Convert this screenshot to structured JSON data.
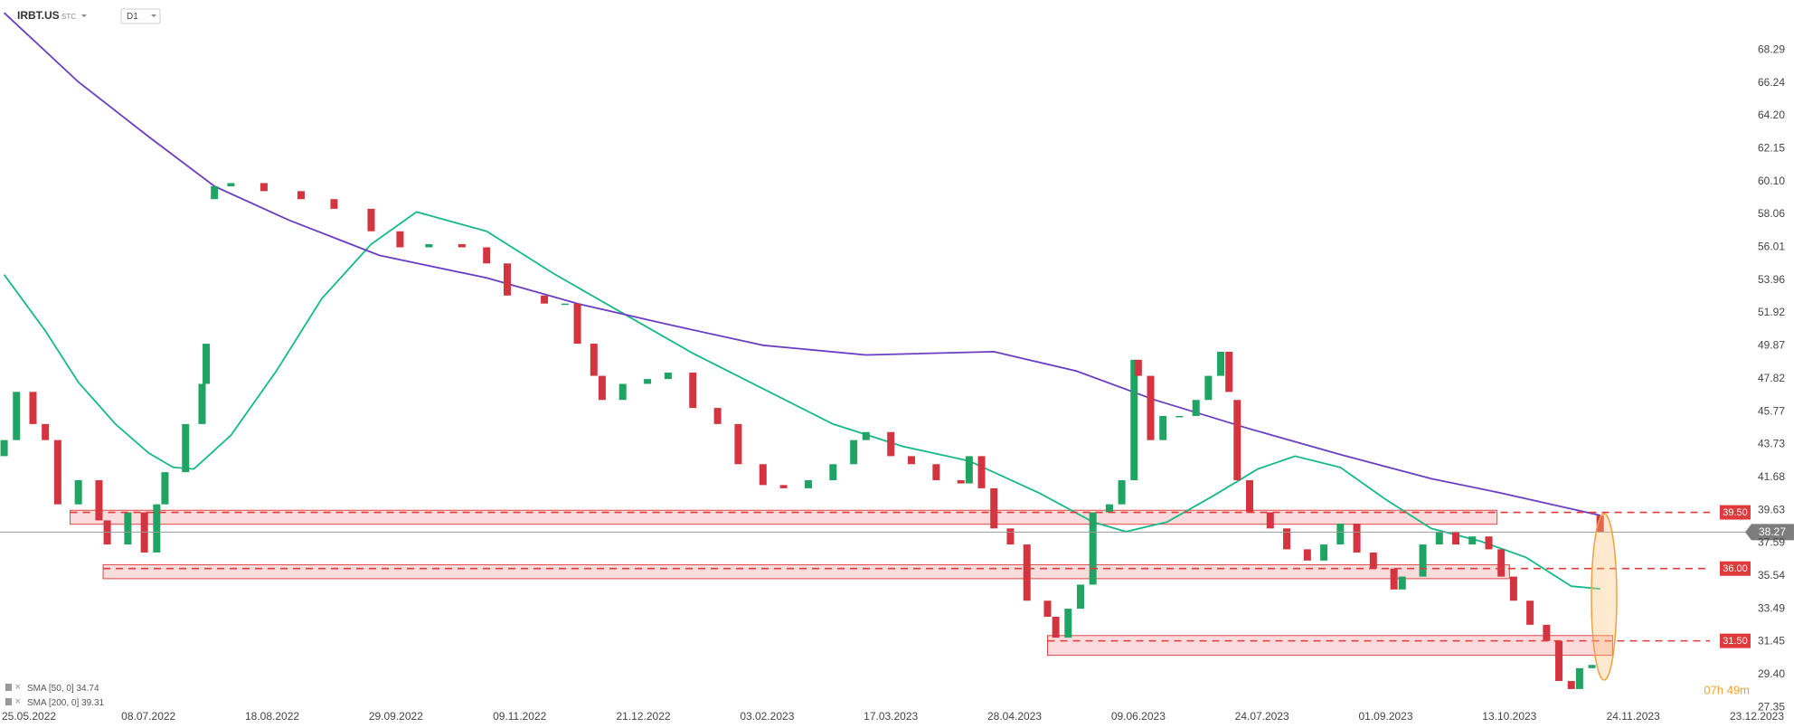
{
  "chart_data": {
    "type": "candlestick",
    "symbol": "IRBT.US",
    "exchange": "STC",
    "interval": "D1",
    "up_color": "#1fa463",
    "down_color": "#d3343f",
    "x": [
      -5,
      -2,
      2,
      5,
      8,
      13,
      18,
      20,
      25,
      29,
      32,
      34,
      39,
      43,
      44,
      46,
      50,
      58,
      67,
      75,
      84,
      91,
      98,
      106,
      112,
      117,
      126,
      131,
      134,
      138,
      140,
      145,
      151,
      156,
      162,
      168,
      173,
      179,
      184,
      190,
      196,
      201,
      204,
      210,
      215,
      221,
      227,
      229,
      232,
      235,
      239,
      243,
      248,
      250,
      253,
      256,
      259,
      263,
      266,
      269,
      270,
      273,
      276,
      280,
      284,
      287,
      290,
      292,
      294,
      297,
      302,
      306,
      311,
      315,
      319,
      323,
      327,
      332,
      334,
      339,
      343,
      347,
      351,
      355,
      358,
      361,
      365,
      369,
      372,
      375,
      377,
      380,
      382
    ],
    "open": [
      43.0,
      44.0,
      47.0,
      45.0,
      44.0,
      40.0,
      41.5,
      39.0,
      37.5,
      39.5,
      37.0,
      40.0,
      42.0,
      45.0,
      47.5,
      59.0,
      59.8,
      60.0,
      59.5,
      59.0,
      58.4,
      57.0,
      56.0,
      56.2,
      56.0,
      55.0,
      53.0,
      52.5,
      52.5,
      50.0,
      48.0,
      46.5,
      47.5,
      47.8,
      48.2,
      46.0,
      45.0,
      42.5,
      41.2,
      41.0,
      41.5,
      42.5,
      44.0,
      44.5,
      43.0,
      42.5,
      41.5,
      41.3,
      43.0,
      41.0,
      38.5,
      37.5,
      34.0,
      33.0,
      31.7,
      33.5,
      35.0,
      39.5,
      40.0,
      41.5,
      49.0,
      48.0,
      44.0,
      45.5,
      45.5,
      46.5,
      48.0,
      49.5,
      46.5,
      41.5,
      39.5,
      38.5,
      37.2,
      36.5,
      37.5,
      38.8,
      37.0,
      36.0,
      34.7,
      35.5,
      37.5,
      38.3,
      37.5,
      38.0,
      37.2,
      35.5,
      34.0,
      32.5,
      31.5,
      29.0,
      28.5,
      29.8,
      39.3
    ],
    "close": [
      44.0,
      47.0,
      45.0,
      44.0,
      40.0,
      41.5,
      39.0,
      37.5,
      39.5,
      37.0,
      40.0,
      42.0,
      45.0,
      47.5,
      50.0,
      59.8,
      60.0,
      59.5,
      59.0,
      58.4,
      57.0,
      56.0,
      56.2,
      56.0,
      55.0,
      53.0,
      52.5,
      52.5,
      50.0,
      48.0,
      46.5,
      47.5,
      47.8,
      48.2,
      46.0,
      45.0,
      42.5,
      41.2,
      41.0,
      41.5,
      42.5,
      44.0,
      44.5,
      43.0,
      42.5,
      41.5,
      41.3,
      43.0,
      41.0,
      38.5,
      37.5,
      34.0,
      33.0,
      31.7,
      33.5,
      35.0,
      39.5,
      40.0,
      41.5,
      49.0,
      48.0,
      44.0,
      45.5,
      45.5,
      46.5,
      48.0,
      49.5,
      47.0,
      41.5,
      39.5,
      38.5,
      37.2,
      36.5,
      37.5,
      38.8,
      37.0,
      36.0,
      34.7,
      35.5,
      37.5,
      38.3,
      37.5,
      38.0,
      37.2,
      35.5,
      34.0,
      32.5,
      31.5,
      29.0,
      28.5,
      29.8,
      30.0,
      38.27
    ],
    "series": [
      {
        "name": "SMA [50, 0]",
        "color": "#14b987",
        "x": [
          -5,
          5,
          13,
          22,
          30,
          36,
          41,
          50,
          61,
          72,
          84,
          95,
          112,
          128,
          145,
          162,
          179,
          196,
          213,
          229,
          246,
          259,
          267,
          277,
          288,
          299,
          308,
          319,
          330,
          341,
          353,
          364,
          375,
          382
        ],
        "values": [
          54.3,
          50.8,
          47.6,
          45.0,
          43.2,
          42.3,
          42.2,
          44.3,
          48.3,
          52.8,
          56.2,
          58.2,
          57.0,
          54.4,
          51.9,
          49.4,
          47.2,
          45.0,
          43.6,
          42.7,
          40.7,
          38.9,
          38.3,
          38.9,
          40.5,
          42.2,
          43.0,
          42.3,
          40.3,
          38.5,
          37.7,
          36.7,
          34.9,
          34.74
        ]
      },
      {
        "name": "SMA [200, 0]",
        "color": "#6a3dc2",
        "x": [
          -5,
          13,
          30,
          46,
          64,
          86,
          112,
          134,
          156,
          179,
          204,
          235,
          255,
          274,
          297,
          319,
          341,
          358,
          382
        ],
        "values": [
          70.6,
          66.3,
          62.9,
          59.8,
          57.7,
          55.5,
          54.1,
          52.5,
          51.2,
          49.9,
          49.3,
          49.5,
          48.3,
          46.5,
          44.7,
          43.1,
          41.6,
          40.7,
          39.31
        ]
      }
    ],
    "xlim": [
      -6,
      420
    ],
    "xticks": [
      {
        "value": 0,
        "label": "25.05.2022"
      },
      {
        "value": 30,
        "label": "08.07.2022"
      },
      {
        "value": 60,
        "label": "18.08.2022"
      },
      {
        "value": 90,
        "label": "29.09.2022"
      },
      {
        "value": 120,
        "label": "09.11.2022"
      },
      {
        "value": 150,
        "label": "21.12.2022"
      },
      {
        "value": 180,
        "label": "03.02.2023"
      },
      {
        "value": 210,
        "label": "17.03.2023"
      },
      {
        "value": 240,
        "label": "28.04.2023"
      },
      {
        "value": 270,
        "label": "09.06.2023"
      },
      {
        "value": 300,
        "label": "24.07.2023"
      },
      {
        "value": 330,
        "label": "01.09.2023"
      },
      {
        "value": 360,
        "label": "13.10.2023"
      },
      {
        "value": 390,
        "label": "24.11.2023"
      },
      {
        "value": 420,
        "label": "23.12.2023"
      }
    ],
    "ylim": [
      27.2,
      71.4
    ],
    "yticks": [
      27.35,
      {
        "value": 29.4,
        "label": "29.40"
      },
      31.45,
      33.49,
      35.54,
      37.59,
      39.63,
      41.68,
      43.73,
      45.77,
      47.82,
      49.87,
      51.92,
      53.96,
      56.01,
      58.06,
      {
        "value": 60.1,
        "label": "60.10"
      },
      62.15,
      {
        "value": 64.2,
        "label": "64.20"
      },
      66.24,
      68.29
    ],
    "levels": [
      {
        "value": 39.5,
        "label": "39.50",
        "zone": {
          "x": [
            11,
            357
          ],
          "y": [
            38.76,
            39.63
          ]
        }
      },
      {
        "value": 36,
        "label": "36.00",
        "zone": {
          "x": [
            19,
            360
          ],
          "y": [
            35.37,
            36.24
          ]
        }
      },
      {
        "value": 31.5,
        "label": "31.50",
        "zone": {
          "x": [
            248,
            385
          ],
          "y": [
            30.6,
            31.83
          ]
        }
      }
    ],
    "last_price": 38.27,
    "timer": "07h 49m"
  }
}
